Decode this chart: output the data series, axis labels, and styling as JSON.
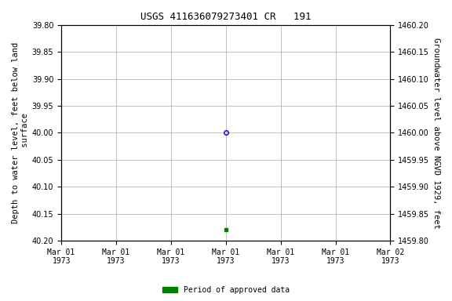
{
  "title": "USGS 411636079273401 CR   191",
  "ylabel_left": "Depth to water level, feet below land\n surface",
  "ylabel_right": "Groundwater level above NGVD 1929, feet",
  "ylim_left": [
    39.8,
    40.2
  ],
  "ylim_right": [
    1459.8,
    1460.2
  ],
  "yticks_left": [
    39.8,
    39.85,
    39.9,
    39.95,
    40.0,
    40.05,
    40.1,
    40.15,
    40.2
  ],
  "yticks_right": [
    1459.8,
    1459.85,
    1459.9,
    1459.95,
    1460.0,
    1460.05,
    1460.1,
    1460.15,
    1460.2
  ],
  "xlim": [
    0,
    6
  ],
  "xtick_positions": [
    0,
    1,
    2,
    3,
    4,
    5,
    6
  ],
  "xtick_labels": [
    "Mar 01\n1973",
    "Mar 01\n1973",
    "Mar 01\n1973",
    "Mar 01\n1973",
    "Mar 01\n1973",
    "Mar 01\n1973",
    "Mar 02\n1973"
  ],
  "data_point_x": 3,
  "data_point_y": 40.0,
  "data_point2_x": 3,
  "data_point2_y": 40.18,
  "data_point_color": "#0000cc",
  "data_point2_color": "#008000",
  "background_color": "#ffffff",
  "grid_color": "#aaaaaa",
  "title_fontsize": 9,
  "axis_fontsize": 7.5,
  "tick_fontsize": 7,
  "legend_label": "Period of approved data",
  "legend_color": "#008000"
}
